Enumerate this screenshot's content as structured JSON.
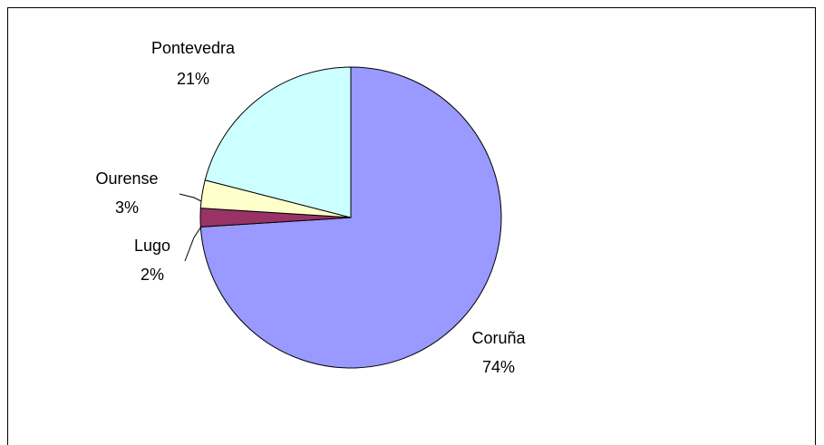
{
  "chart_data": {
    "type": "pie",
    "categories": [
      "Coruña",
      "Lugo",
      "Ourense",
      "Pontevedra"
    ],
    "values": [
      74,
      2,
      3,
      21
    ],
    "value_labels": [
      "74%",
      "2%",
      "3%",
      "21%"
    ],
    "colors": [
      "#9999ff",
      "#993366",
      "#ffffcc",
      "#ccffff"
    ]
  }
}
